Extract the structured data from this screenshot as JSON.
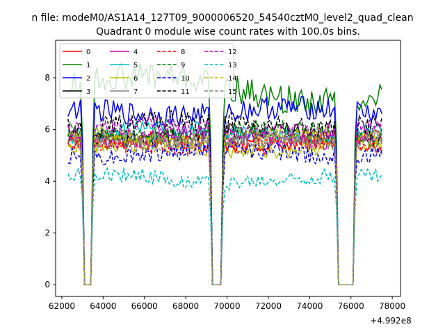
{
  "chart_data": {
    "type": "line",
    "suptitle": "n file: modeM0/AS1A14_127T09_9000006520_54540cztM0_level2_quad_clean",
    "title": "Quadrant 0 module wise count rates with 100.0s bins.",
    "xlabel": "",
    "ylabel": "",
    "x_offset_text": "+4.992e8",
    "xlim": [
      61700,
      78400
    ],
    "ylim": [
      -0.45,
      9.45
    ],
    "x_ticks": [
      62000,
      64000,
      66000,
      68000,
      70000,
      72000,
      74000,
      76000,
      78000
    ],
    "x_tick_labels": [
      "62000",
      "64000",
      "66000",
      "68000",
      "70000",
      "72000",
      "74000",
      "76000",
      "78000"
    ],
    "y_ticks": [
      0,
      2,
      4,
      6,
      8
    ],
    "y_tick_labels": [
      "0",
      "2",
      "4",
      "6",
      "8"
    ],
    "x_start": 62300,
    "x_step": 100,
    "n_points": 153,
    "gaps": [
      [
        63100,
        63400
      ],
      [
        69300,
        69700
      ],
      [
        75400,
        76100
      ]
    ],
    "legend_position": "top-left",
    "series": [
      {
        "name": "0",
        "color": "#ff0000",
        "dash": "solid",
        "level": 5.5,
        "amp": 0.35
      },
      {
        "name": "1",
        "color": "#008000",
        "dash": "solid",
        "level": 7.6,
        "amp": 0.55
      },
      {
        "name": "2",
        "color": "#0000ff",
        "dash": "solid",
        "level": 6.7,
        "amp": 0.45
      },
      {
        "name": "3",
        "color": "#000000",
        "dash": "solid",
        "level": 5.8,
        "amp": 0.35
      },
      {
        "name": "4",
        "color": "#bf00bf",
        "dash": "solid",
        "level": 5.7,
        "amp": 0.35
      },
      {
        "name": "5",
        "color": "#00bfbf",
        "dash": "solid",
        "level": 5.9,
        "amp": 0.35
      },
      {
        "name": "6",
        "color": "#bfbf00",
        "dash": "solid",
        "level": 5.3,
        "amp": 0.3
      },
      {
        "name": "7",
        "color": "#808080",
        "dash": "solid",
        "level": 5.6,
        "amp": 0.3
      },
      {
        "name": "8",
        "color": "#ff0000",
        "dash": "dashed",
        "level": 5.4,
        "amp": 0.3
      },
      {
        "name": "9",
        "color": "#008000",
        "dash": "dashed",
        "level": 5.9,
        "amp": 0.35
      },
      {
        "name": "10",
        "color": "#0000ff",
        "dash": "dashed",
        "level": 5.1,
        "amp": 0.35
      },
      {
        "name": "11",
        "color": "#000000",
        "dash": "dashed",
        "level": 6.2,
        "amp": 0.4
      },
      {
        "name": "12",
        "color": "#bf00bf",
        "dash": "dashed",
        "level": 6.0,
        "amp": 0.35
      },
      {
        "name": "13",
        "color": "#00bfbf",
        "dash": "dashed",
        "level": 4.1,
        "amp": 0.3
      },
      {
        "name": "14",
        "color": "#bfbf00",
        "dash": "dashed",
        "level": 5.7,
        "amp": 0.3
      },
      {
        "name": "15",
        "color": "#808080",
        "dash": "dashed",
        "level": 5.5,
        "amp": 0.3
      }
    ]
  }
}
